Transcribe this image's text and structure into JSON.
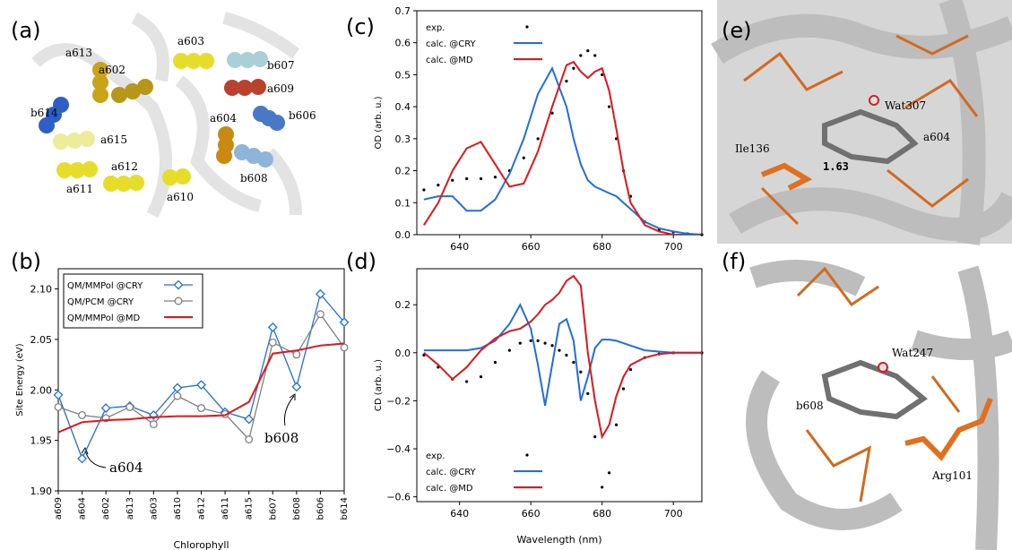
{
  "panel_labels": [
    "(a)",
    "(b)",
    "(c)",
    "(d)",
    "(e)",
    "(f)"
  ],
  "structure_labels": {
    "a": [
      "a613",
      "a602",
      "a603",
      "b607",
      "a609",
      "b614",
      "a604",
      "b606",
      "a615",
      "a612",
      "a611",
      "a610",
      "b608"
    ],
    "e": [
      "Wat307",
      "a604",
      "Ile136",
      "1.63"
    ],
    "f": [
      "Wat247",
      "b608",
      "Arg101"
    ]
  },
  "chart_data": [
    {
      "type": "line",
      "xlabel": "Chlorophyll",
      "ylabel": "Site Energy (eV)",
      "categories": [
        "a609",
        "a604",
        "a602",
        "a613",
        "a603",
        "a610",
        "a612",
        "a611",
        "a615",
        "b607",
        "b608",
        "b606",
        "b614"
      ],
      "ylim": [
        1.9,
        2.12
      ],
      "yticks": [
        {
          "value": 1.9,
          "label": "1.90"
        },
        1.95,
        {
          "value": 2.0,
          "label": "2.00"
        },
        2.05,
        {
          "value": 2.1,
          "label": "2.10"
        }
      ],
      "legend": "upper left",
      "legend_frame": true,
      "annotations": [
        "a604",
        "b608"
      ],
      "series": [
        {
          "name": "QM/MMPol @CRY",
          "color": "#1f6fe0",
          "marker": "diamond",
          "values": [
            1.995,
            1.932,
            1.982,
            1.984,
            1.975,
            2.002,
            2.005,
            1.978,
            1.971,
            2.062,
            2.003,
            2.095,
            2.067
          ]
        },
        {
          "name": "QM/PCM @CRY",
          "color": "#808080",
          "marker": "circle",
          "values": [
            1.983,
            1.975,
            1.972,
            1.983,
            1.966,
            1.994,
            1.982,
            1.976,
            1.951,
            2.047,
            2.035,
            2.075,
            2.042
          ]
        },
        {
          "name": "QM/MMPol @MD",
          "color": "#e8141a",
          "marker": "none",
          "values": [
            1.958,
            1.968,
            1.97,
            1.971,
            1.973,
            1.974,
            1.974,
            1.975,
            1.988,
            2.036,
            2.039,
            2.044,
            2.046
          ]
        }
      ]
    },
    {
      "type": "line",
      "ylabel": "OD (arb. u.)",
      "x": [
        630,
        634,
        638,
        642,
        646,
        650,
        654,
        658,
        662,
        666,
        670,
        672,
        674,
        676,
        678,
        680,
        682,
        684,
        686,
        688,
        692,
        696,
        700,
        704,
        708
      ],
      "xlim": [
        628,
        708
      ],
      "xticks": [
        640,
        660,
        680,
        700
      ],
      "ylim": [
        0,
        0.7
      ],
      "yticks": [
        {
          "value": 0,
          "label": "0.0"
        },
        0.1,
        0.2,
        0.3,
        0.4,
        0.5,
        0.6,
        0.7
      ],
      "legend": "upper left",
      "series": [
        {
          "name": "exp.",
          "color": "#000000",
          "marker": "dot",
          "values": [
            0.14,
            0.155,
            0.17,
            0.175,
            0.175,
            0.18,
            0.2,
            0.24,
            0.3,
            0.38,
            0.48,
            0.52,
            0.56,
            0.575,
            0.56,
            0.5,
            0.4,
            0.3,
            0.2,
            0.12,
            0.04,
            0.015,
            0.008,
            0.003,
            0
          ]
        },
        {
          "name": "calc. @CRY",
          "color": "#1f6fe0",
          "marker": "none",
          "values": [
            0.11,
            0.12,
            0.12,
            0.075,
            0.075,
            0.11,
            0.19,
            0.3,
            0.44,
            0.52,
            0.4,
            0.3,
            0.22,
            0.17,
            0.15,
            0.14,
            0.13,
            0.12,
            0.1,
            0.08,
            0.04,
            0.02,
            0.01,
            0.003,
            0
          ]
        },
        {
          "name": "calc. @MD",
          "color": "#e8141a",
          "marker": "none",
          "values": [
            0.03,
            0.1,
            0.2,
            0.27,
            0.29,
            0.22,
            0.15,
            0.16,
            0.26,
            0.4,
            0.53,
            0.54,
            0.51,
            0.49,
            0.51,
            0.52,
            0.45,
            0.33,
            0.2,
            0.1,
            0.03,
            0.01,
            0,
            0,
            0
          ]
        }
      ]
    },
    {
      "type": "line",
      "xlabel": "Wavelength (nm)",
      "ylabel": "CD (arb. u.)",
      "x": [
        630,
        634,
        638,
        642,
        646,
        650,
        654,
        657,
        660,
        662,
        664,
        666,
        668,
        670,
        672,
        674,
        676,
        678,
        680,
        682,
        684,
        686,
        688,
        692,
        696,
        700,
        708
      ],
      "xlim": [
        628,
        708
      ],
      "xticks": [
        640,
        660,
        680,
        700
      ],
      "ylim": [
        -0.62,
        0.35
      ],
      "yticks": [
        {
          "value": -0.6,
          "label": "−0.6"
        },
        {
          "value": -0.4,
          "label": "−0.4"
        },
        {
          "value": -0.2,
          "label": "−0.2"
        },
        {
          "value": 0,
          "label": "0.0"
        },
        0.2
      ],
      "legend": "lower left",
      "series": [
        {
          "name": "exp.",
          "color": "#000000",
          "marker": "dot",
          "values": [
            -0.01,
            -0.06,
            -0.11,
            -0.12,
            -0.1,
            -0.04,
            0.01,
            0.04,
            0.05,
            0.05,
            0.04,
            0.03,
            0.01,
            -0.01,
            -0.04,
            -0.08,
            -0.17,
            -0.35,
            -0.56,
            -0.5,
            -0.3,
            -0.15,
            -0.07,
            -0.02,
            -0.005,
            0,
            0
          ]
        },
        {
          "name": "calc. @CRY",
          "color": "#1f6fe0",
          "marker": "none",
          "values": [
            0.01,
            0.01,
            0.01,
            0.01,
            0.02,
            0.05,
            0.12,
            0.2,
            0.1,
            -0.05,
            -0.22,
            -0.05,
            0.12,
            0.14,
            0.05,
            -0.2,
            -0.1,
            0.02,
            0.055,
            0.055,
            0.05,
            0.04,
            0.03,
            0.01,
            0.005,
            0,
            0
          ]
        },
        {
          "name": "calc. @MD",
          "color": "#e8141a",
          "marker": "none",
          "values": [
            0,
            -0.05,
            -0.11,
            -0.06,
            0.01,
            0.06,
            0.09,
            0.1,
            0.13,
            0.16,
            0.2,
            0.22,
            0.25,
            0.3,
            0.32,
            0.28,
            0,
            -0.2,
            -0.35,
            -0.3,
            -0.18,
            -0.1,
            -0.05,
            -0.02,
            -0.005,
            0,
            0
          ]
        }
      ]
    }
  ]
}
